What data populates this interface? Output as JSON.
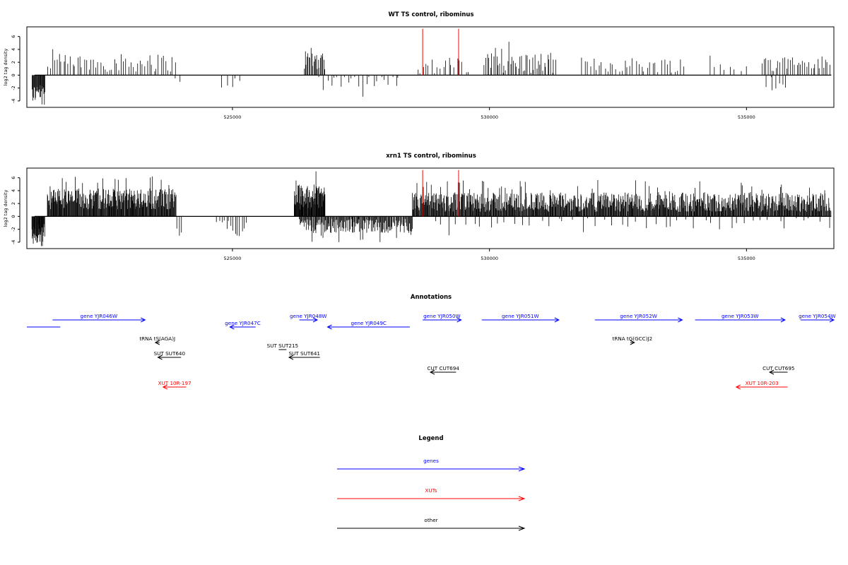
{
  "chart_data": [
    {
      "type": "bar",
      "title": "WT TS control, ribominus",
      "ylabel": "log2 tag density",
      "xlim": [
        521000,
        536700
      ],
      "ylim": [
        -5,
        7.5
      ],
      "xticks": [
        525000,
        530000,
        535000
      ],
      "yticks": [
        6,
        4,
        2,
        0,
        -2,
        -4
      ],
      "grid": false,
      "highlight_positions": [
        528700,
        529400
      ],
      "highlight_color": "#ff0000",
      "bar_color": "#000000",
      "regions": [
        {
          "from": 521100,
          "to": 521350,
          "sign": -1,
          "mean": 2.8,
          "jitter": 1.5,
          "step": 10
        },
        {
          "from": 521400,
          "to": 523900,
          "sign": 1,
          "mean": 1.9,
          "jitter": 1.4,
          "step": 45
        },
        {
          "from": 523900,
          "to": 524000,
          "sign": -1,
          "mean": 0.8,
          "jitter": 0.4,
          "step": 60
        },
        {
          "from": 524800,
          "to": 525200,
          "sign": -1,
          "mean": 1.2,
          "jitter": 1.0,
          "step": 90
        },
        {
          "from": 526400,
          "to": 526800,
          "sign": 1,
          "mean": 2.4,
          "jitter": 1.6,
          "step": 18
        },
        {
          "from": 526700,
          "to": 528300,
          "sign": -1,
          "mean": 1.0,
          "jitter": 1.1,
          "step": 70
        },
        {
          "from": 528600,
          "to": 529600,
          "sign": 1,
          "mean": 1.3,
          "jitter": 1.5,
          "step": 55
        },
        {
          "from": 529900,
          "to": 531300,
          "sign": 1,
          "mean": 1.9,
          "jitter": 1.6,
          "step": 30
        },
        {
          "from": 531800,
          "to": 533800,
          "sign": 1,
          "mean": 1.6,
          "jitter": 1.2,
          "step": 55
        },
        {
          "from": 534300,
          "to": 535000,
          "sign": 1,
          "mean": 1.3,
          "jitter": 1.0,
          "step": 95
        },
        {
          "from": 535400,
          "to": 535800,
          "sign": -1,
          "mean": 0.9,
          "jitter": 0.7,
          "step": 60
        },
        {
          "from": 535300,
          "to": 536650,
          "sign": 1,
          "mean": 1.8,
          "jitter": 1.2,
          "step": 40
        }
      ]
    },
    {
      "type": "bar",
      "title": "xrn1 TS control, ribominus",
      "ylabel": "log2 tag density",
      "xlim": [
        521000,
        536700
      ],
      "ylim": [
        -5,
        7.5
      ],
      "xticks": [
        525000,
        530000,
        535000
      ],
      "yticks": [
        6,
        4,
        2,
        0,
        -2,
        -4
      ],
      "grid": false,
      "highlight_positions": [
        528700,
        529400
      ],
      "highlight_color": "#ff0000",
      "bar_color": "#000000",
      "regions": [
        {
          "from": 521100,
          "to": 521350,
          "sign": -1,
          "mean": 2.6,
          "jitter": 1.5,
          "step": 8
        },
        {
          "from": 521400,
          "to": 523900,
          "sign": 1,
          "mean": 2.7,
          "jitter": 1.6,
          "step": 10
        },
        {
          "from": 523900,
          "to": 524000,
          "sign": -1,
          "mean": 1.8,
          "jitter": 1.2,
          "step": 50
        },
        {
          "from": 524700,
          "to": 525300,
          "sign": -1,
          "mean": 1.8,
          "jitter": 1.2,
          "step": 45
        },
        {
          "from": 526200,
          "to": 526800,
          "sign": 1,
          "mean": 3.0,
          "jitter": 2.0,
          "step": 8
        },
        {
          "from": 526300,
          "to": 528500,
          "sign": -1,
          "mean": 1.5,
          "jitter": 1.1,
          "step": 14
        },
        {
          "from": 528500,
          "to": 536650,
          "sign": 1,
          "mean": 2.2,
          "jitter": 1.5,
          "step": 11
        },
        {
          "from": 528900,
          "to": 536600,
          "sign": -1,
          "mean": 1.0,
          "jitter": 0.9,
          "step": 160
        }
      ]
    }
  ],
  "annotations": {
    "title": "Annotations",
    "items": [
      {
        "label": "",
        "from": 521000,
        "to": 521650,
        "dir": 0,
        "row": 1,
        "kind": "gene"
      },
      {
        "label": "gene YJR046W",
        "from": 521500,
        "to": 523300,
        "dir": 1,
        "row": 0,
        "kind": "gene"
      },
      {
        "label": "gene YJR047C",
        "from": 524950,
        "to": 525450,
        "dir": -1,
        "row": 1,
        "kind": "gene"
      },
      {
        "label": "gene YJR048W",
        "from": 526300,
        "to": 526650,
        "dir": 1,
        "row": 0,
        "kind": "gene"
      },
      {
        "label": "gene YJR049C",
        "from": 526850,
        "to": 528450,
        "dir": -1,
        "row": 1,
        "kind": "gene"
      },
      {
        "label": "gene YJR050W",
        "from": 528700,
        "to": 529450,
        "dir": 1,
        "row": 0,
        "kind": "gene"
      },
      {
        "label": "gene YJR051W",
        "from": 529850,
        "to": 531350,
        "dir": 1,
        "row": 0,
        "kind": "gene"
      },
      {
        "label": "gene YJR052W",
        "from": 532050,
        "to": 533750,
        "dir": 1,
        "row": 0,
        "kind": "gene"
      },
      {
        "label": "gene YJR053W",
        "from": 534000,
        "to": 535750,
        "dir": 1,
        "row": 0,
        "kind": "gene"
      },
      {
        "label": "gene YJR054W",
        "from": 536050,
        "to": 536700,
        "dir": 1,
        "row": 0,
        "kind": "gene"
      },
      {
        "label": "tRNA tS(AGA)J",
        "from": 523500,
        "to": 523580,
        "dir": -1,
        "row": 2,
        "kind": "other"
      },
      {
        "label": "tRNA tG(GCC)J2",
        "from": 532740,
        "to": 532820,
        "dir": 1,
        "row": 2,
        "kind": "other"
      },
      {
        "label": "SUT SUT215",
        "from": 525900,
        "to": 526050,
        "dir": 0,
        "row": 3,
        "kind": "other"
      },
      {
        "label": "SUT SUT640",
        "from": 523550,
        "to": 524000,
        "dir": -1,
        "row": 4,
        "kind": "other"
      },
      {
        "label": "SUT SUT641",
        "from": 526100,
        "to": 526700,
        "dir": -1,
        "row": 4,
        "kind": "other"
      },
      {
        "label": "CUT CUT694",
        "from": 528850,
        "to": 529350,
        "dir": -1,
        "row": 5,
        "kind": "other"
      },
      {
        "label": "CUT CUT695",
        "from": 535450,
        "to": 535800,
        "dir": -1,
        "row": 5,
        "kind": "other"
      },
      {
        "label": "XUT 10R-197",
        "from": 523650,
        "to": 524100,
        "dir": -1,
        "row": 6,
        "kind": "xut"
      },
      {
        "label": "XUT 10R-203",
        "from": 534800,
        "to": 535800,
        "dir": -1,
        "row": 6,
        "kind": "xut"
      }
    ]
  },
  "legend": {
    "title": "Legend",
    "entries": [
      {
        "label": "genes",
        "color": "#0000ff"
      },
      {
        "label": "XUTs",
        "color": "#ff0000"
      },
      {
        "label": "other",
        "color": "#000000"
      }
    ]
  },
  "colors": {
    "gene": "#0000ff",
    "xut": "#ff0000",
    "other": "#000000"
  }
}
